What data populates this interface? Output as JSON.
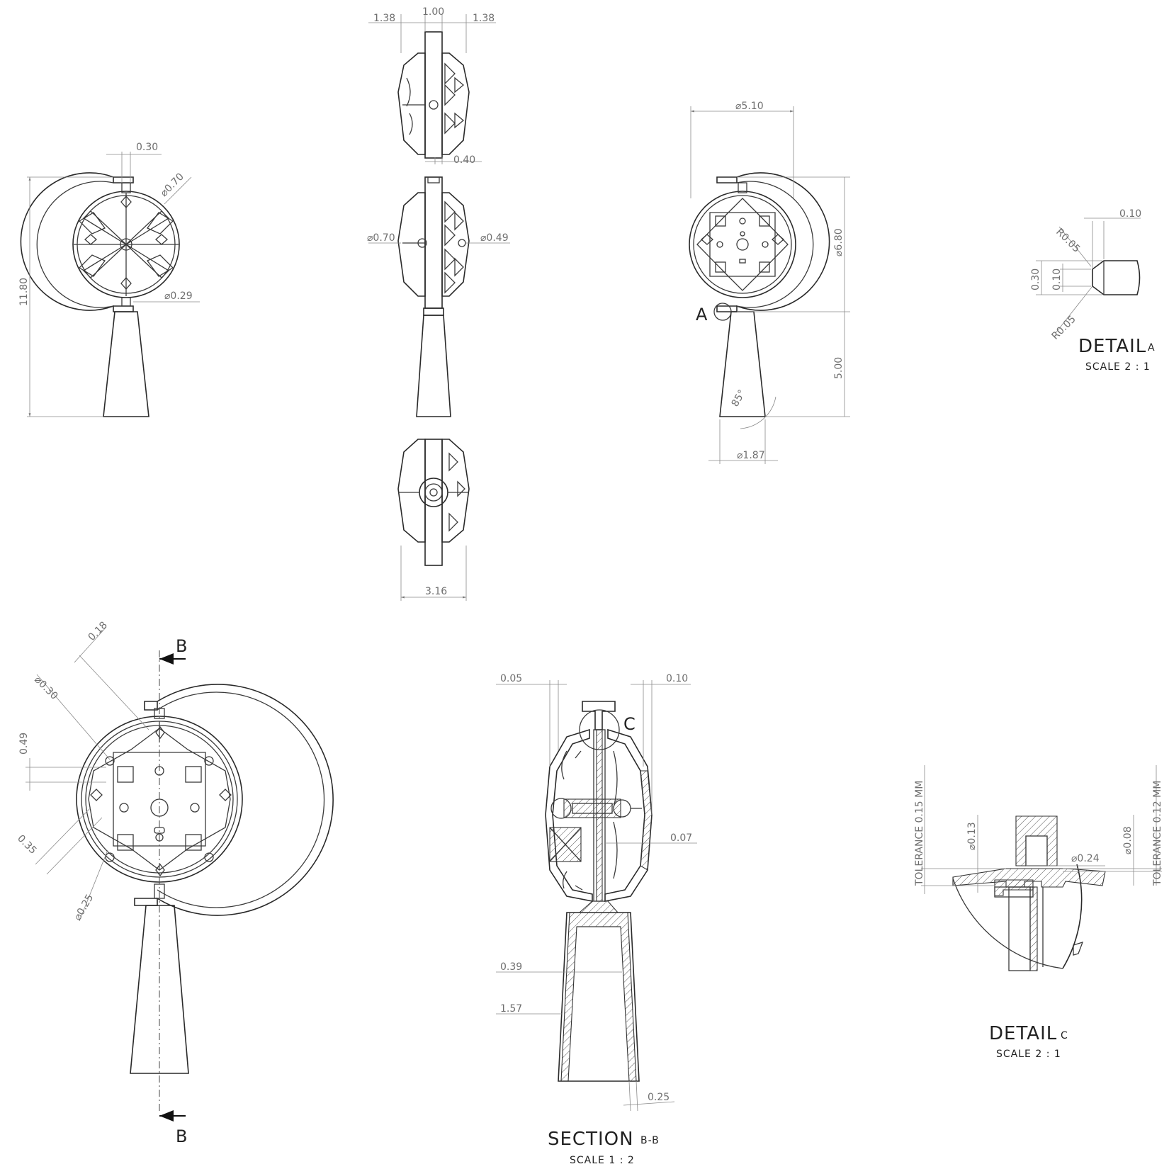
{
  "views": {
    "front": {
      "dims": {
        "overall_height": "11.80",
        "pin_width": "0.30",
        "hub_dia": "0.70",
        "pin_dia": "0.29"
      }
    },
    "side_top": {
      "dims": {
        "left_offset": "1.38",
        "center_width": "1.00",
        "right_offset": "1.38",
        "shell_gap": "0.40"
      }
    },
    "side_middle": {
      "dims": {
        "left_hub_dia": "0.70",
        "right_hub_dia": "0.49"
      }
    },
    "side_bottom": {
      "dims": {
        "depth": "3.16"
      }
    },
    "right": {
      "detail_label": "A",
      "dims": {
        "sphere_dia": "5.10",
        "ring_dia": "6.80",
        "base_height": "5.00",
        "base_dia": "1.87",
        "taper_angle": "85°"
      }
    },
    "detail_a": {
      "title": "DETAIL",
      "suffix": "A",
      "scale": "SCALE 2 : 1",
      "dims": {
        "tip_length": "0.10",
        "radius_top": "R0.05",
        "radius_bottom": "R0.05",
        "outer_height": "0.30",
        "inner_height": "0.10"
      }
    },
    "section_source": {
      "cut_label_top": "B",
      "cut_label_bottom": "B",
      "dims": {
        "offset": "0.18",
        "hole_dia": "0.30",
        "spacing": "0.49",
        "gap": "0.35",
        "small_hole_dia": "0.25"
      }
    },
    "section_bb": {
      "title": "SECTION",
      "suffix": "B-B",
      "scale": "SCALE 1 : 2",
      "detail_label": "C",
      "dims": {
        "left_clearance": "0.05",
        "right_clearance": "0.10",
        "wall": "0.07",
        "bore": "0.39",
        "base_bore": "1.57",
        "base_wall": "0.25"
      }
    },
    "detail_c": {
      "title": "DETAIL",
      "suffix": "C",
      "scale": "SCALE 2 : 1",
      "tolerance_left": "TOLERANCE 0.15 MM",
      "tolerance_right": "TOLERANCE 0.12 MM",
      "dims": {
        "pin_dia": "0.13",
        "bore_dia": "0.24",
        "lip": "0.08"
      }
    }
  }
}
